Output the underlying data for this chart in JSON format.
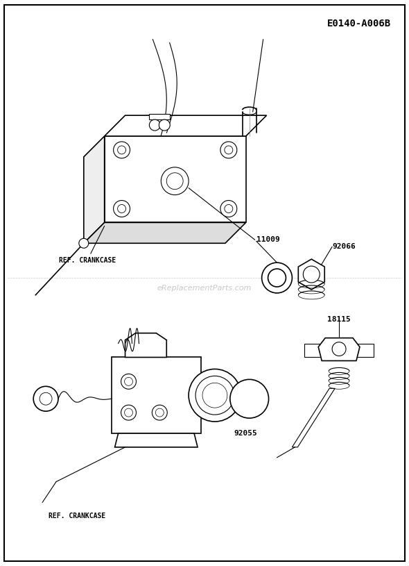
{
  "title_code": "E0140-A006B",
  "watermark": "eReplacementParts.com",
  "background_color": "#ffffff",
  "border_color": "#000000",
  "line_color": "#000000",
  "fig_width": 5.9,
  "fig_height": 8.15,
  "dpi": 100
}
